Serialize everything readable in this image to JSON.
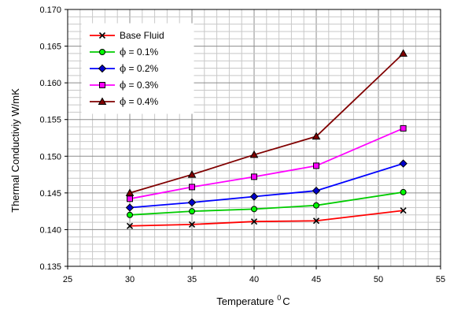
{
  "chart_data": {
    "type": "line",
    "title": "",
    "xlabel": "Temperature",
    "xlabel_unit": "C",
    "xlabel_sup": "0",
    "ylabel": "Thermal Conductiviy W/mK",
    "xlim": [
      25,
      55
    ],
    "ylim": [
      0.135,
      0.17
    ],
    "x_ticks": [
      "25",
      "30",
      "35",
      "40",
      "45",
      "50",
      "55"
    ],
    "y_ticks": [
      "0.135",
      "0.140",
      "0.145",
      "0.150",
      "0.155",
      "0.160",
      "0.165",
      "0.170"
    ],
    "grid": true,
    "legend_position": "top-left",
    "x": [
      30,
      35,
      40,
      45,
      52
    ],
    "series": [
      {
        "name": "Base Fluid",
        "phi": false,
        "color": "#ff0000",
        "marker": "x",
        "marker_fill": "#000000",
        "values": [
          0.1405,
          0.1407,
          0.1411,
          0.1412,
          0.1426
        ]
      },
      {
        "name": " = 0.1%",
        "phi": true,
        "color": "#00cc00",
        "marker": "circle",
        "marker_fill": "#00ff00",
        "values": [
          0.142,
          0.1425,
          0.1428,
          0.1433,
          0.1451
        ]
      },
      {
        "name": " = 0.2%",
        "phi": true,
        "color": "#0000ff",
        "marker": "diamond",
        "marker_fill": "#0000cc",
        "values": [
          0.143,
          0.1437,
          0.1445,
          0.1453,
          0.149
        ]
      },
      {
        "name": " = 0.3%",
        "phi": true,
        "color": "#ff00ff",
        "marker": "square",
        "marker_fill": "#ff00ff",
        "values": [
          0.1442,
          0.1458,
          0.1472,
          0.1487,
          0.1538
        ]
      },
      {
        "name": " = 0.4%",
        "phi": true,
        "color": "#800000",
        "marker": "triangle",
        "marker_fill": "#800000",
        "values": [
          0.145,
          0.1475,
          0.1502,
          0.1527,
          0.164
        ]
      }
    ]
  }
}
